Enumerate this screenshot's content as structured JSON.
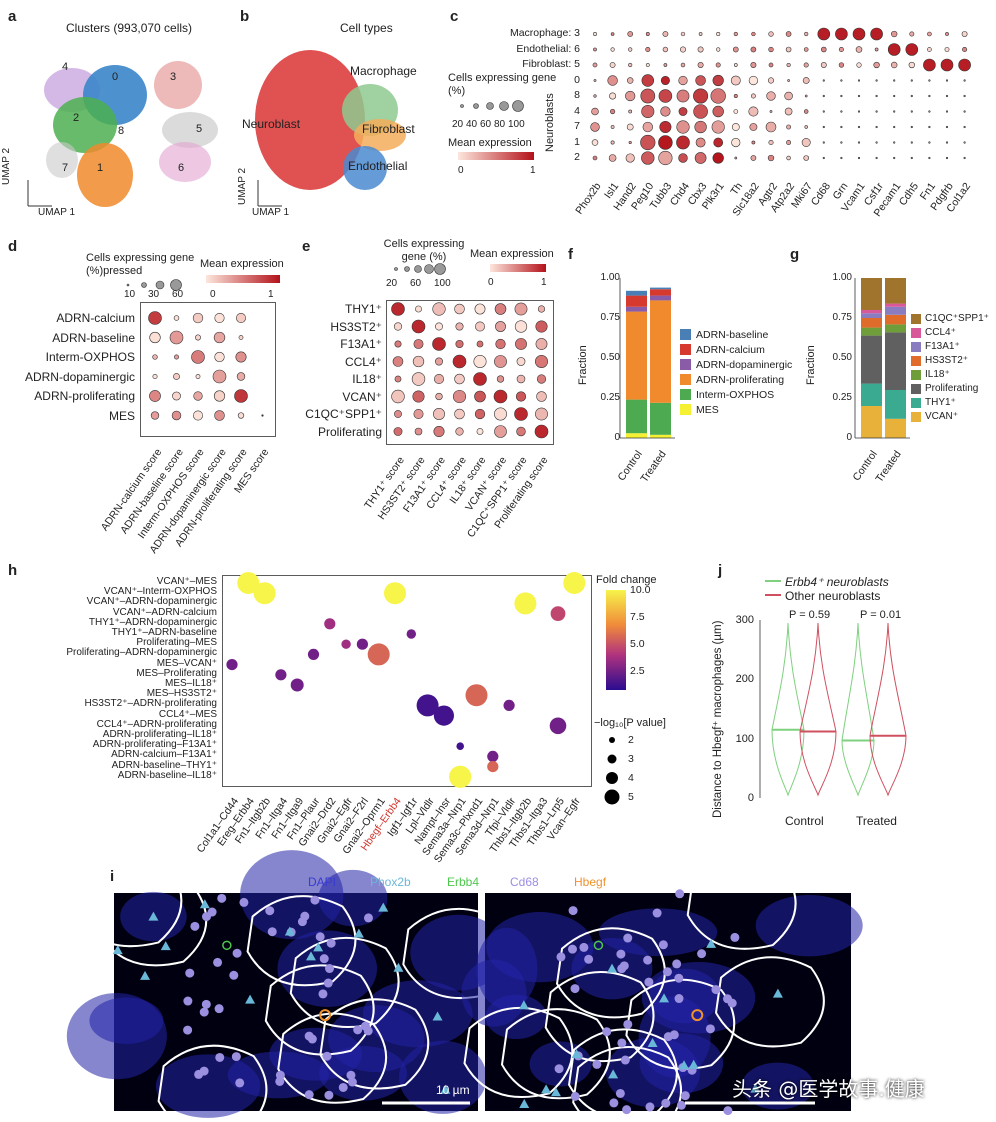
{
  "panels": {
    "a": "a",
    "b": "b",
    "c": "c",
    "d": "d",
    "e": "e",
    "f": "f",
    "g": "g",
    "h": "h",
    "i": "i",
    "j": "j"
  },
  "panel_a": {
    "title": "Clusters (993,070 cells)",
    "clusters": [
      "4",
      "0",
      "3",
      "2",
      "8",
      "5",
      "7",
      "1",
      "6"
    ],
    "ylabel": "UMAP 2",
    "xlabel": "UMAP 1"
  },
  "panel_b": {
    "title": "Cell types",
    "types": [
      "Neuroblast",
      "Macrophage",
      "Fibroblast",
      "Endothelial"
    ],
    "ylabel": "UMAP 2",
    "xlabel": "UMAP 1"
  },
  "panel_c": {
    "rows_top": [
      "Macrophage: 3",
      "Endothelial: 6",
      "Fibroblast: 5"
    ],
    "rows_nb": [
      "0",
      "8",
      "4",
      "7",
      "1",
      "2"
    ],
    "nb_label": "Neuroblasts",
    "genes": [
      "Phox2b",
      "Isl1",
      "Hand2",
      "Peg10",
      "Tubb3",
      "Chd4",
      "Cbx3",
      "Plk3r1",
      "Th",
      "Slc18a2",
      "Agtr2",
      "Atp2a2",
      "Mki67",
      "Cd68",
      "Grn",
      "Vcam1",
      "Csf1r",
      "Pecam1",
      "Cdh5",
      "Fn1",
      "Pdgfrb",
      "Col1a2"
    ],
    "size_title": "Cells expressing gene (%)",
    "size_ticks": [
      "20",
      "40",
      "60",
      "80",
      "100"
    ],
    "color_title": "Mean expression",
    "color_ticks": [
      "0",
      "1"
    ]
  },
  "panel_d": {
    "rows": [
      "ADRN-calcium",
      "ADRN-baseline",
      "Interm-OXPHOS",
      "ADRN-dopaminergic",
      "ADRN-proliferating",
      "MES"
    ],
    "cols": [
      "ADRN-calcium score",
      "ADRN-baseline score",
      "Interm-OXPHOS score",
      "ADRN-dopaminergic score",
      "ADRN-proliferating score",
      "MES score"
    ],
    "size_title": "Cells expressing gene (%)pressed",
    "size_ticks": [
      "10",
      "30",
      "60"
    ],
    "color_title": "Mean expression",
    "color_ticks": [
      "0",
      "1"
    ]
  },
  "panel_e": {
    "rows": [
      "THY1⁺",
      "HS3ST2⁺",
      "F13A1⁺",
      "CCL4⁺",
      "IL18⁺",
      "VCAN⁺",
      "C1QC⁺SPP1⁺",
      "Proliferating"
    ],
    "cols": [
      "THY1⁺ score",
      "HS3ST2⁺ score",
      "F13A1⁺ score",
      "CCL4⁺ score",
      "IL18⁺ score",
      "VCAN⁺ score",
      "C1QC⁺SPP1⁺ score",
      "Proliferating score"
    ],
    "size_title": "Cells expressing gene (%)",
    "size_ticks": [
      "20",
      "60",
      "100"
    ],
    "color_title": "Mean expression",
    "color_ticks": [
      "0",
      "1"
    ]
  },
  "panel_f": {
    "ylabel": "Fraction",
    "yticks": [
      "0",
      "0.25",
      "0.50",
      "0.75",
      "1.00"
    ],
    "groups": [
      "Control",
      "Treated"
    ],
    "legend": [
      "ADRN-baseline",
      "ADRN-calcium",
      "ADRN-dopaminergic",
      "ADRN-proliferating",
      "Interm-OXPHOS",
      "MES"
    ],
    "colors": [
      "#4a7fb5",
      "#d63a2f",
      "#8a5ca8",
      "#f08a2c",
      "#4daa50",
      "#f5f032"
    ]
  },
  "panel_g": {
    "ylabel": "Fraction",
    "yticks": [
      "0",
      "0.25",
      "0.50",
      "0.75",
      "1.00"
    ],
    "groups": [
      "Control",
      "Treated"
    ],
    "legend": [
      "C1QC⁺SPP1⁺",
      "CCL4⁺",
      "F13A1⁺",
      "HS3ST2⁺",
      "IL18⁺",
      "Proliferating",
      "THY1⁺",
      "VCAN⁺"
    ],
    "colors": [
      "#a0742c",
      "#d9589a",
      "#8a7cc0",
      "#e06c2c",
      "#6e9d3a",
      "#606060",
      "#3aaa90",
      "#e8b23a"
    ]
  },
  "panel_h": {
    "rows": [
      "VCAN⁺–MES",
      "VCAN⁺–Interm-OXPHOS",
      "VCAN⁺–ADRN-dopaminergic",
      "VCAN⁺–ADRN-calcium",
      "THY1⁺–ADRN-dopaminergic",
      "THY1⁺–ADRN-baseline",
      "Proliferating–MES",
      "Proliferating–ADRN-dopaminergic",
      "MES–VCAN⁺",
      "MES–Proliferating",
      "MES–IL18⁺",
      "MES–HS3ST2⁺",
      "HS3ST2⁺–ADRN-proliferating",
      "CCL4⁺–MES",
      "CCL4⁺–ADRN-proliferating",
      "ADRN-proliferating–IL18⁺",
      "ADRN-proliferating–F13A1⁺",
      "ADRN-calcium–F13A1⁺",
      "ADRN-baseline–THY1⁺",
      "ADRN-baseline–IL18⁺"
    ],
    "cols": [
      "Col1a1–Cd44",
      "Ereg–Erbb4",
      "Fn1–Itgb2b",
      "Fn1–Itga4",
      "Fn1–Itga9",
      "Fn1–Plaur",
      "Gnai2–Drd2",
      "Gnai2–Egfr",
      "Gnai2–F2rl",
      "Gnai2–Oprm1",
      "Hbegf–Erbb4",
      "Igf1–Igf1r",
      "Lpl–Vldlr",
      "Nampt–Insr",
      "Sema3a–Nrp1",
      "Sema3c–Plxnd1",
      "Sema3d–Nrp1",
      "Tfpi–Vldlr",
      "Thbs1–Itgb2b",
      "Thbs1–Itga3",
      "Thbs1–Lrp5",
      "Vcan–Egfr"
    ],
    "highlight_col": "Hbegf–Erbb4",
    "color_title": "Fold change",
    "color_ticks": [
      "10.0",
      "7.5",
      "5.0",
      "2.5"
    ],
    "size_title": "−log₁₀[P value]",
    "size_ticks": [
      "2",
      "3",
      "4",
      "5"
    ]
  },
  "panel_i": {
    "channels": [
      "DAPI",
      "Phox2b",
      "Erbb4",
      "Cd68",
      "Hbegf"
    ],
    "channel_colors": [
      "#3a3ad0",
      "#6ab8d8",
      "#4fc84f",
      "#9b8fe0",
      "#f0922c"
    ],
    "scale": "10 µm"
  },
  "panel_j": {
    "legend": [
      "Erbb4⁺ neuroblasts",
      "Other neuroblasts"
    ],
    "ylabel": "Distance to Hbegf⁺ macrophages (µm)",
    "yticks": [
      "0",
      "100",
      "200",
      "300"
    ],
    "groups": [
      "Control",
      "Treated"
    ],
    "pvals": [
      "P = 0.59",
      "P = 0.01"
    ],
    "colors": [
      "#7fd07f",
      "#d05060"
    ]
  },
  "watermark": "头条 @医学故事.健康"
}
